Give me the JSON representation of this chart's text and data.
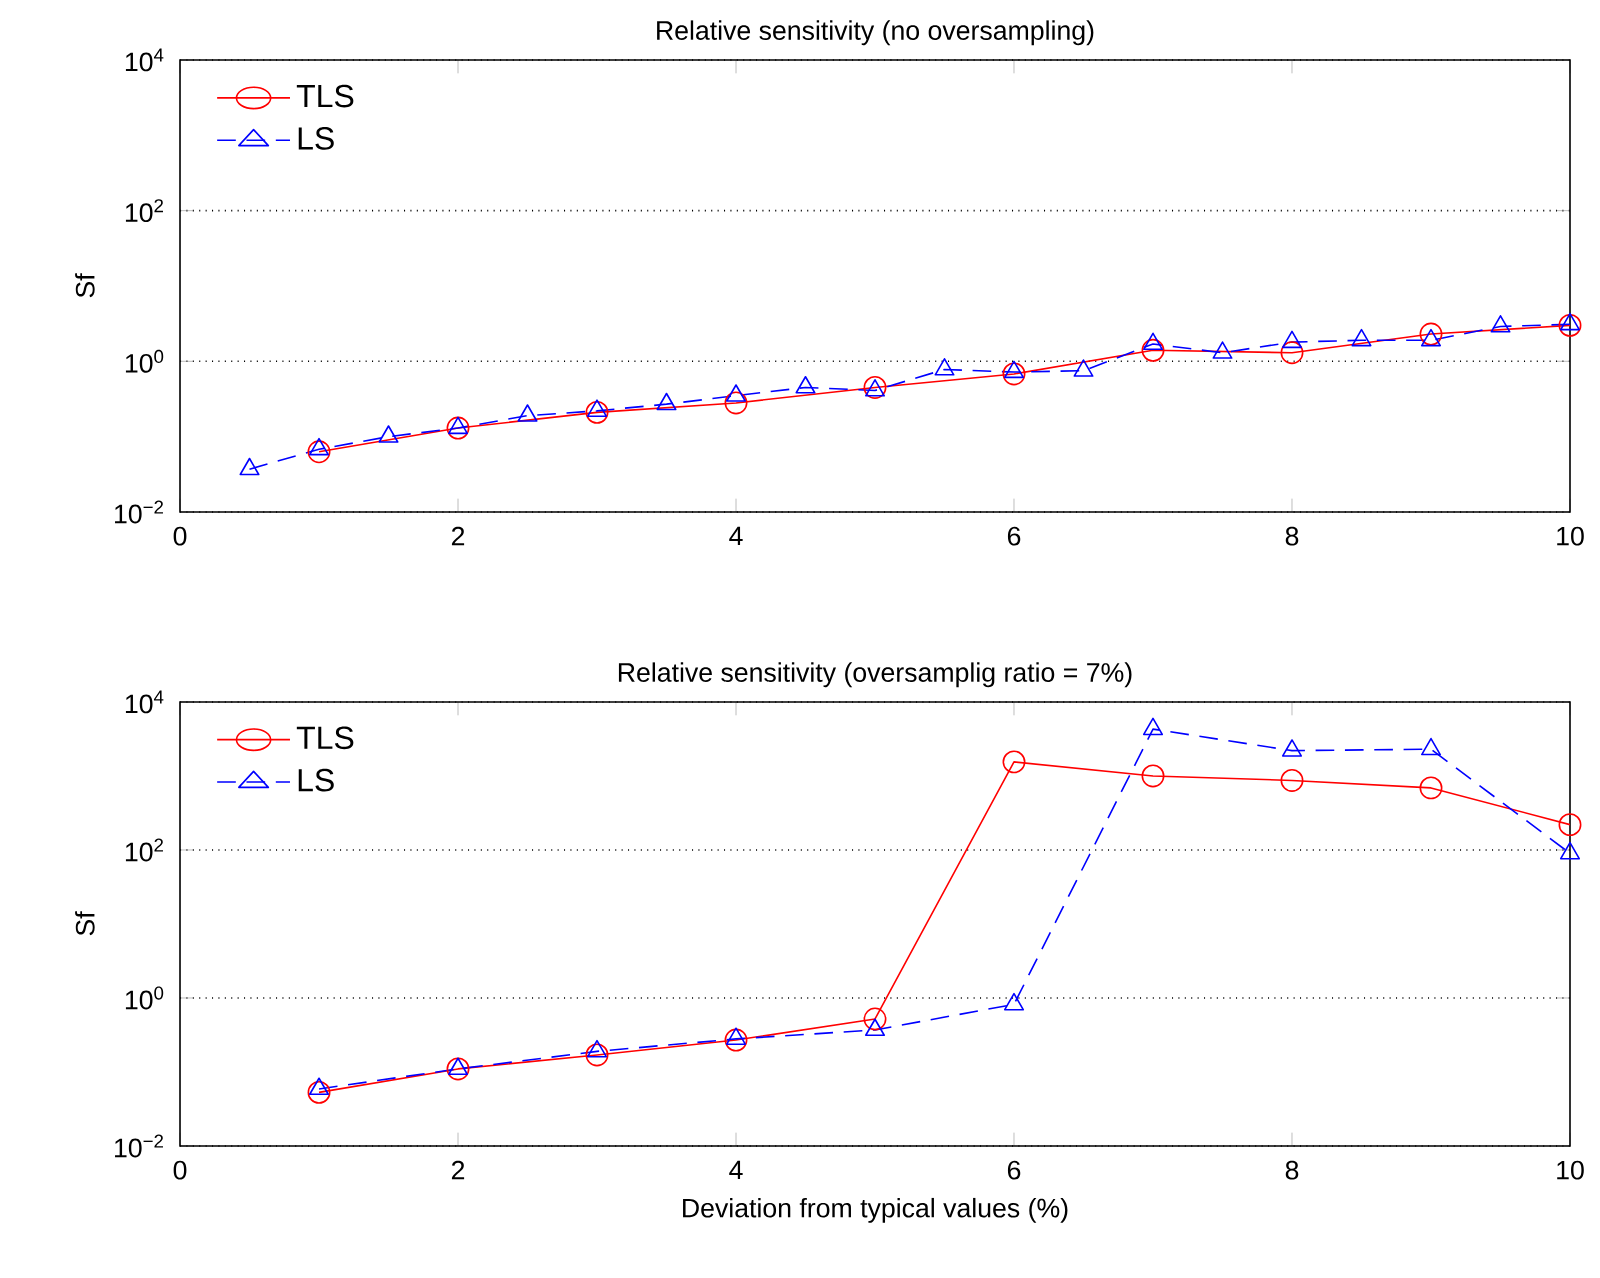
{
  "chart_data": [
    {
      "type": "line",
      "title": "Relative sensitivity (no oversampling)",
      "ylabel": "Sf",
      "log": "y",
      "grid": "y",
      "legend": "top left",
      "xlim": [
        0,
        10
      ],
      "xticks": [
        0,
        2,
        4,
        6,
        8,
        10
      ],
      "ylim": [
        0.01,
        10000
      ],
      "yticks": [
        {
          "value": 0.01,
          "label": "10$^{−2}$"
        },
        {
          "value": 1,
          "label": "10$^{0}$"
        },
        {
          "value": 100,
          "label": "10$^{2}$"
        },
        {
          "value": 10000,
          "label": "10$^{4}$"
        }
      ],
      "series": [
        {
          "name": "TLS",
          "color": "#ff0000",
          "marker": "circle",
          "line_style": "solid",
          "x": [
            1,
            2,
            3,
            4,
            5,
            6,
            7,
            8,
            9,
            10
          ],
          "values": [
            0.063,
            0.13,
            0.21,
            0.28,
            0.45,
            0.68,
            1.4,
            1.3,
            2.3,
            3.0
          ]
        },
        {
          "name": "LS",
          "color": "#0000ff",
          "marker": "triangle",
          "line_style": "dashed",
          "x": [
            0.5,
            1,
            1.5,
            2,
            2.5,
            3,
            3.5,
            4,
            4.5,
            5,
            5.5,
            6,
            6.5,
            7,
            7.5,
            8,
            8.5,
            9,
            9.5,
            10
          ],
          "values": [
            0.037,
            0.068,
            0.1,
            0.13,
            0.19,
            0.22,
            0.27,
            0.35,
            0.45,
            0.41,
            0.78,
            0.72,
            0.75,
            1.7,
            1.3,
            1.8,
            1.9,
            1.9,
            2.9,
            3.1
          ]
        }
      ]
    },
    {
      "type": "line",
      "title": "Relative sensitivity (oversamplig ratio = 7%)",
      "xlabel": "Deviation from typical values (%)",
      "ylabel": "Sf",
      "log": "y",
      "grid": "y",
      "legend": "top left",
      "xlim": [
        0,
        10
      ],
      "xticks": [
        0,
        2,
        4,
        6,
        8,
        10
      ],
      "ylim": [
        0.01,
        10000
      ],
      "yticks": [
        {
          "value": 0.01,
          "label": "10$^{−2}$"
        },
        {
          "value": 1,
          "label": "10$^{0}$"
        },
        {
          "value": 100,
          "label": "10$^{2}$"
        },
        {
          "value": 10000,
          "label": "10$^{4}$"
        }
      ],
      "series": [
        {
          "name": "TLS",
          "color": "#ff0000",
          "marker": "circle",
          "line_style": "solid",
          "x": [
            1,
            2,
            3,
            4,
            5,
            6,
            7,
            8,
            9,
            10
          ],
          "values": [
            0.053,
            0.11,
            0.17,
            0.27,
            0.52,
            1550,
            1000,
            870,
            690,
            220
          ]
        },
        {
          "name": "LS",
          "color": "#0000ff",
          "marker": "triangle",
          "line_style": "dashed",
          "x": [
            1,
            2,
            3,
            4,
            5,
            6,
            7,
            8,
            9,
            10
          ],
          "values": [
            0.059,
            0.11,
            0.19,
            0.28,
            0.37,
            0.82,
            4300,
            2200,
            2300,
            90
          ]
        }
      ]
    }
  ]
}
